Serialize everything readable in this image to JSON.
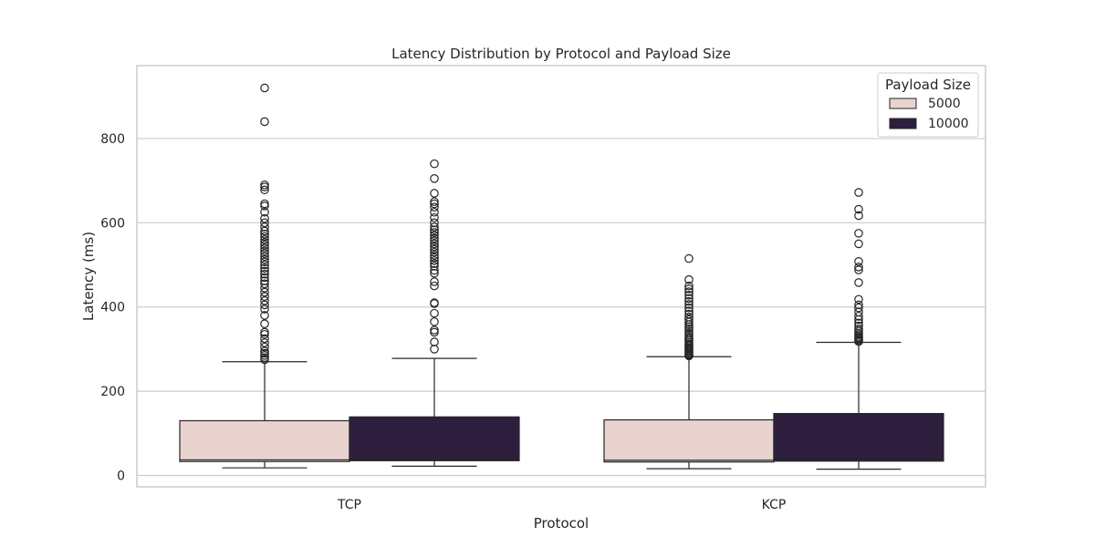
{
  "chart_data": {
    "type": "box",
    "title": "Latency Distribution by Protocol and Payload Size",
    "xlabel": "Protocol",
    "ylabel": "Latency (ms)",
    "categories": [
      "TCP",
      "KCP"
    ],
    "ylim": [
      -27,
      973
    ],
    "yticks": [
      0,
      200,
      400,
      600,
      800
    ],
    "grid": true,
    "legend": {
      "title": "Payload Size",
      "position": "top-right"
    },
    "series": [
      {
        "name": "5000",
        "color": "#e8d3ce",
        "boxes": [
          {
            "category": "TCP",
            "whisker_low": 18,
            "q1": 33,
            "median": 37,
            "q3": 130,
            "whisker_high": 270,
            "outliers": [
              275,
              280,
              285,
              290,
              295,
              305,
              315,
              325,
              335,
              340,
              360,
              380,
              395,
              405,
              415,
              425,
              435,
              445,
              455,
              462,
              470,
              478,
              485,
              492,
              500,
              507,
              513,
              520,
              527,
              533,
              540,
              547,
              553,
              560,
              567,
              573,
              580,
              590,
              600,
              610,
              625,
              640,
              645,
              678,
              685,
              690,
              840,
              920
            ]
          },
          {
            "category": "KCP",
            "whisker_low": 16,
            "q1": 32,
            "median": 36,
            "q3": 132,
            "whisker_high": 282,
            "outliers": [
              284,
              286,
              288,
              291,
              294,
              297,
              300,
              303,
              306,
              309,
              312,
              316,
              320,
              324,
              328,
              333,
              338,
              343,
              348,
              353,
              358,
              364,
              370,
              376,
              383,
              390,
              398,
              406,
              413,
              420,
              428,
              436,
              443,
              450,
              465,
              515
            ]
          }
        ]
      },
      {
        "name": "10000",
        "color": "#2d1e3e",
        "boxes": [
          {
            "category": "TCP",
            "whisker_low": 22,
            "q1": 35,
            "median": 39,
            "q3": 139,
            "whisker_high": 278,
            "outliers": [
              300,
              317,
              340,
              345,
              365,
              385,
              408,
              410,
              450,
              460,
              480,
              487,
              497,
              503,
              510,
              517,
              523,
              530,
              537,
              543,
              550,
              557,
              563,
              570,
              577,
              583,
              590,
              600,
              612,
              625,
              637,
              645,
              650,
              670,
              705,
              740
            ]
          },
          {
            "category": "KCP",
            "whisker_low": 15,
            "q1": 34,
            "median": 38,
            "q3": 147,
            "whisker_high": 316,
            "outliers": [
              318,
              321,
              324,
              327,
              330,
              334,
              338,
              343,
              348,
              355,
              362,
              370,
              378,
              388,
              398,
              405,
              418,
              458,
              488,
              495,
              508,
              550,
              575,
              617,
              632,
              672
            ]
          }
        ]
      }
    ]
  }
}
